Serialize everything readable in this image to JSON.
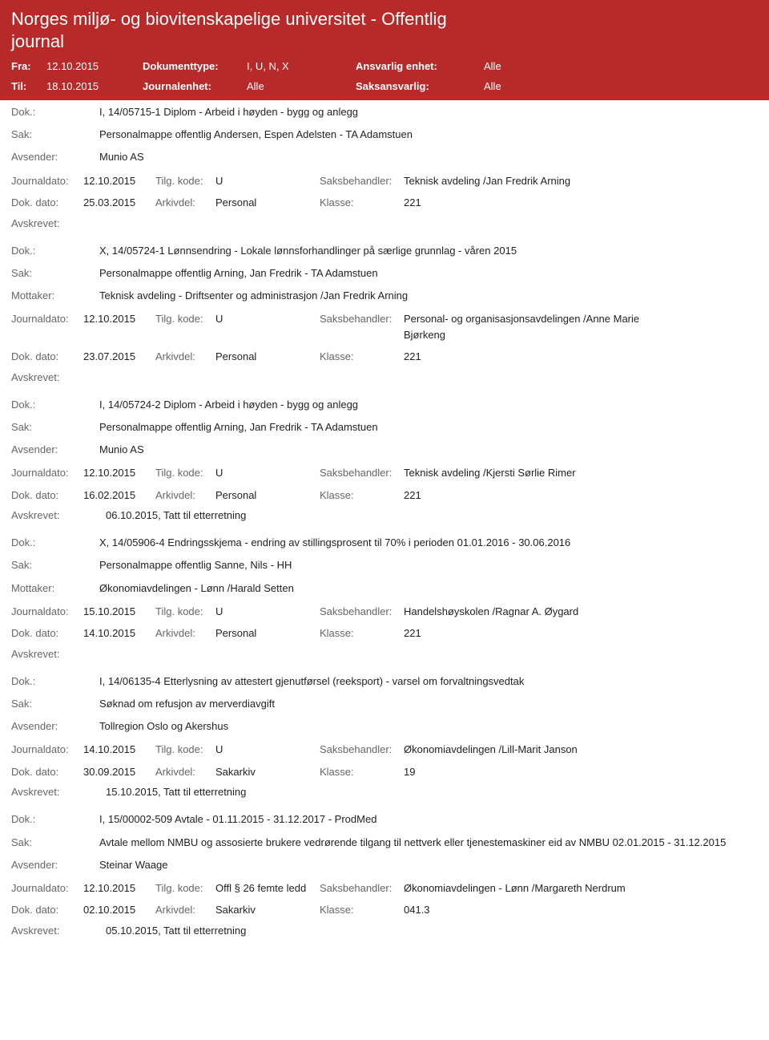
{
  "header": {
    "title": "Norges miljø- og biovitenskapelige universitet - Offentlig journal",
    "fra_label": "Fra:",
    "fra_value": "12.10.2015",
    "til_label": "Til:",
    "til_value": "18.10.2015",
    "doktype_label": "Dokumenttype:",
    "doktype_value": "I, U, N, X",
    "journalenhet_label": "Journalenhet:",
    "journalenhet_value": "Alle",
    "ansvarlig_label": "Ansvarlig enhet:",
    "ansvarlig_value": "Alle",
    "saksansvarlig_label": "Saksansvarlig:",
    "saksansvarlig_value": "Alle"
  },
  "labels": {
    "dok": "Dok.:",
    "sak": "Sak:",
    "avsender": "Avsender:",
    "mottaker": "Mottaker:",
    "journaldato": "Journaldato:",
    "tilgkode": "Tilg. kode:",
    "saksbehandler": "Saksbehandler:",
    "dokdato": "Dok. dato:",
    "arkivdel": "Arkivdel:",
    "klasse": "Klasse:",
    "avskrevet": "Avskrevet:"
  },
  "entries": [
    {
      "dok": "I, 14/05715-1 Diplom - Arbeid i høyden - bygg og anlegg",
      "sak": "Personalmappe offentlig Andersen, Espen Adelsten - TA Adamstuen",
      "party_label": "Avsender:",
      "party_value": "Munio AS",
      "journaldato": "12.10.2015",
      "tilgkode": "U",
      "saksbehandler": "Teknisk avdeling /Jan Fredrik Arning",
      "dokdato": "25.03.2015",
      "arkivdel": "Personal",
      "klasse": "221",
      "avskrevet": ""
    },
    {
      "dok": "X, 14/05724-1 Lønnsendring - Lokale lønnsforhandlinger på særlige grunnlag - våren 2015",
      "sak": "Personalmappe offentlig Arning, Jan Fredrik - TA Adamstuen",
      "party_label": "Mottaker:",
      "party_value": "Teknisk avdeling - Driftsenter og administrasjon /Jan Fredrik Arning",
      "journaldato": "12.10.2015",
      "tilgkode": "U",
      "saksbehandler": "Personal- og organisasjonsavdelingen /Anne Marie Bjørkeng",
      "dokdato": "23.07.2015",
      "arkivdel": "Personal",
      "klasse": "221",
      "avskrevet": ""
    },
    {
      "dok": "I, 14/05724-2 Diplom - Arbeid i høyden - bygg og anlegg",
      "sak": "Personalmappe offentlig Arning, Jan Fredrik - TA Adamstuen",
      "party_label": "Avsender:",
      "party_value": "Munio AS",
      "journaldato": "12.10.2015",
      "tilgkode": "U",
      "saksbehandler": "Teknisk avdeling /Kjersti Sørlie Rimer",
      "dokdato": "16.02.2015",
      "arkivdel": "Personal",
      "klasse": "221",
      "avskrevet": "06.10.2015, Tatt til etterretning"
    },
    {
      "dok": "X, 14/05906-4 Endringsskjema - endring av stillingsprosent til 70% i perioden 01.01.2016 - 30.06.2016",
      "sak": "Personalmappe offentlig Sanne, Nils - HH",
      "party_label": "Mottaker:",
      "party_value": "Økonomiavdelingen - Lønn /Harald Setten",
      "journaldato": "15.10.2015",
      "tilgkode": "U",
      "saksbehandler": "Handelshøyskolen /Ragnar A. Øygard",
      "dokdato": "14.10.2015",
      "arkivdel": "Personal",
      "klasse": "221",
      "avskrevet": ""
    },
    {
      "dok": "I, 14/06135-4 Etterlysning av attestert gjenutførsel (reeksport) - varsel om forvaltningsvedtak",
      "sak": "Søknad om refusjon av merverdiavgift",
      "party_label": "Avsender:",
      "party_value": "Tollregion Oslo og Akershus",
      "journaldato": "14.10.2015",
      "tilgkode": "U",
      "saksbehandler": "Økonomiavdelingen /Lill-Marit Janson",
      "dokdato": "30.09.2015",
      "arkivdel": "Sakarkiv",
      "klasse": "19",
      "avskrevet": "15.10.2015, Tatt til etterretning"
    },
    {
      "dok": "I, 15/00002-509 Avtale - 01.11.2015 - 31.12.2017 - ProdMed",
      "sak": "Avtale mellom NMBU og assosierte brukere vedrørende tilgang til nettverk eller tjenestemaskiner eid av NMBU 02.01.2015 - 31.12.2015",
      "party_label": "Avsender:",
      "party_value": "Steinar Waage",
      "journaldato": "12.10.2015",
      "tilgkode": "Offl § 26 femte ledd",
      "saksbehandler": "Økonomiavdelingen - Lønn /Margareth Nerdrum",
      "dokdato": "02.10.2015",
      "arkivdel": "Sakarkiv",
      "klasse": "041.3",
      "avskrevet": "05.10.2015, Tatt til etterretning"
    }
  ],
  "layout": {
    "col_journaldato_label_w": 90,
    "col_journaldato_value_w": 90,
    "col_tilgkode_label_w": 75,
    "col_tilgkode_value_w": 130,
    "col_saksbehandler_label_w": 105,
    "col_saksbehandler_value_w": 330,
    "col_dokdato_label_w": 90,
    "col_dokdato_value_w": 90,
    "col_arkivdel_label_w": 75,
    "col_arkivdel_value_w": 130,
    "col_klasse_label_w": 105,
    "col_klasse_value_w": 330
  }
}
